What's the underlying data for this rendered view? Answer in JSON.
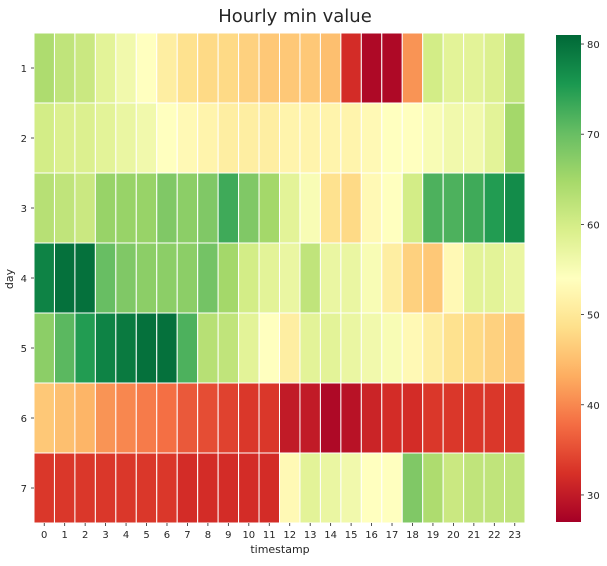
{
  "chart_data": {
    "type": "heatmap",
    "title": "Hourly min value",
    "xlabel": "timestamp",
    "ylabel": "day",
    "x": [
      "0",
      "1",
      "2",
      "3",
      "4",
      "5",
      "6",
      "7",
      "8",
      "9",
      "10",
      "11",
      "12",
      "13",
      "14",
      "15",
      "16",
      "17",
      "18",
      "19",
      "20",
      "21",
      "22",
      "23"
    ],
    "y": [
      "1",
      "2",
      "3",
      "4",
      "5",
      "6",
      "7"
    ],
    "values": [
      [
        64,
        62,
        61,
        58,
        56,
        54,
        51,
        49,
        48,
        48,
        47,
        46,
        46,
        46,
        45,
        32,
        28,
        28,
        41,
        60,
        58,
        58,
        59,
        62
      ],
      [
        60,
        59,
        59,
        58,
        57,
        56,
        54,
        53,
        52,
        51,
        51,
        51,
        52,
        52,
        52,
        52,
        53,
        54,
        54,
        55,
        56,
        56,
        58,
        65
      ],
      [
        63,
        62,
        61,
        66,
        66,
        66,
        68,
        67,
        68,
        73,
        68,
        65,
        58,
        55,
        49,
        48,
        53,
        54,
        60,
        72,
        72,
        73,
        75,
        77
      ],
      [
        78,
        80,
        80,
        70,
        68,
        67,
        67,
        67,
        69,
        65,
        60,
        58,
        57,
        62,
        57,
        57,
        55,
        51,
        47,
        46,
        53,
        58,
        58,
        57
      ],
      [
        67,
        71,
        75,
        78,
        79,
        80,
        80,
        72,
        63,
        62,
        58,
        54,
        51,
        58,
        58,
        57,
        56,
        55,
        53,
        51,
        49,
        48,
        47,
        46
      ],
      [
        46,
        45,
        44,
        41,
        40,
        39,
        38,
        36,
        35,
        34,
        33,
        33,
        30,
        30,
        28,
        29,
        31,
        32,
        32,
        33,
        33,
        33,
        33,
        33
      ],
      [
        33,
        33,
        33,
        33,
        33,
        33,
        33,
        32,
        32,
        32,
        32,
        32,
        53,
        58,
        57,
        56,
        54,
        54,
        68,
        64,
        61,
        62,
        62,
        62
      ]
    ],
    "colorbar": {
      "min": 27,
      "max": 81,
      "ticks": [
        30,
        40,
        50,
        60,
        70,
        80
      ],
      "colormap": "RdYlGn"
    },
    "grid_lines": true,
    "grid_color": "#ffffff"
  }
}
